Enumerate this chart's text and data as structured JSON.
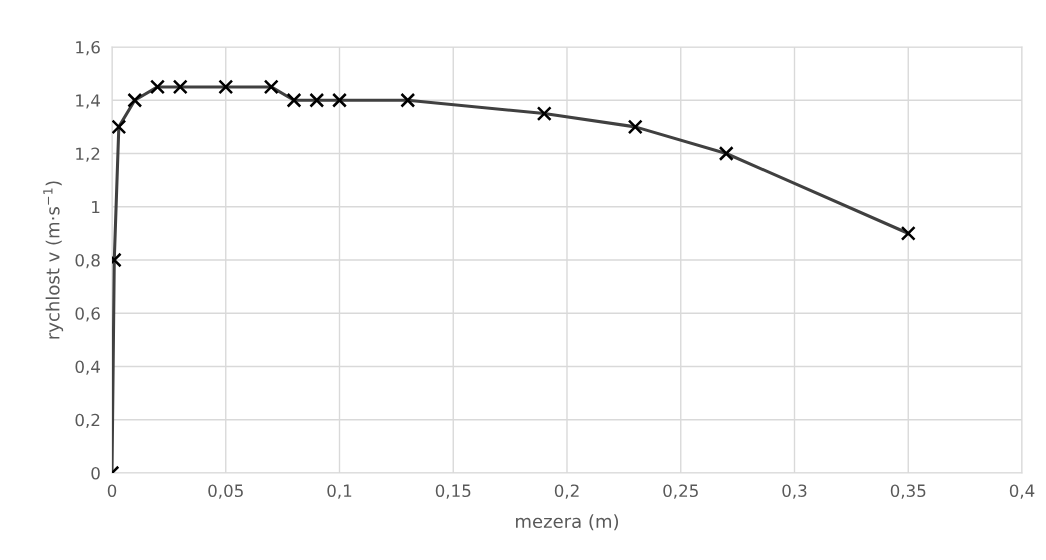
{
  "chart_data": {
    "type": "line",
    "xlabel": "mezera (m)",
    "ylabel": "rychlost v (m·s$^{−1}$)",
    "x": [
      0,
      0.001,
      0.003,
      0.01,
      0.02,
      0.03,
      0.05,
      0.07,
      0.08,
      0.09,
      0.1,
      0.13,
      0.19,
      0.23,
      0.27,
      0.35
    ],
    "series": [
      {
        "color": "#404040",
        "values": [
          0,
          0.8,
          1.3,
          1.4,
          1.45,
          1.45,
          1.45,
          1.45,
          1.4,
          1.4,
          1.4,
          1.4,
          1.35,
          1.3,
          1.2,
          0.9
        ]
      }
    ],
    "xlim": [
      0,
      0.4
    ],
    "xticks": [
      0,
      {
        "value": 0.05,
        "label": "0,05"
      },
      {
        "value": 0.1,
        "label": "0,1"
      },
      {
        "value": 0.15,
        "label": "0,15"
      },
      {
        "value": 0.2,
        "label": "0,2"
      },
      {
        "value": 0.25,
        "label": "0,25"
      },
      {
        "value": 0.3,
        "label": "0,3"
      },
      {
        "value": 0.35,
        "label": "0,35"
      },
      {
        "value": 0.4,
        "label": "0,4"
      }
    ],
    "ylim": [
      0,
      1.6
    ],
    "yticks": [
      0,
      {
        "value": 0.2,
        "label": "0,2"
      },
      {
        "value": 0.4,
        "label": "0,4"
      },
      {
        "value": 0.6,
        "label": "0,6"
      },
      {
        "value": 0.8,
        "label": "0,8"
      },
      1,
      {
        "value": 1.2,
        "label": "1,2"
      },
      {
        "value": 1.4,
        "label": "1,4"
      },
      {
        "value": 1.6,
        "label": "1,6"
      }
    ],
    "grid": true,
    "marker": "cross",
    "line_style": "solid"
  }
}
